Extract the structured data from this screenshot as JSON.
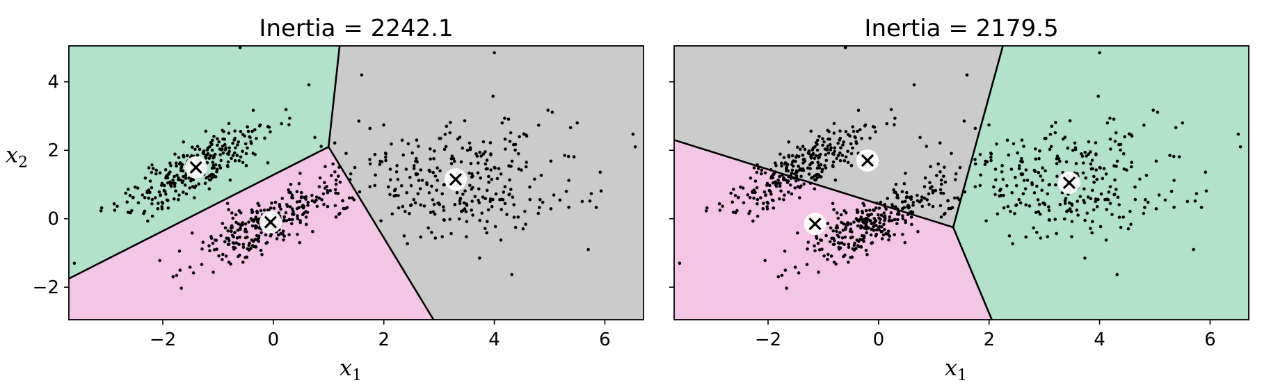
{
  "chart_data": [
    {
      "type": "scatter",
      "title": "Inertia = 2242.1",
      "xlabel": "x",
      "xlabel_sub": "1",
      "ylabel": "x",
      "ylabel_sub": "2",
      "xlim": [
        -3.7,
        6.7
      ],
      "ylim": [
        -2.95,
        5.05
      ],
      "xticks": [
        {
          "v": -2,
          "label": "−2"
        },
        {
          "v": 0,
          "label": "0"
        },
        {
          "v": 2,
          "label": "2"
        },
        {
          "v": 4,
          "label": "4"
        },
        {
          "v": 6,
          "label": "6"
        }
      ],
      "yticks": [
        {
          "v": -2,
          "label": "−2"
        },
        {
          "v": 0,
          "label": "0"
        },
        {
          "v": 2,
          "label": "2"
        },
        {
          "v": 4,
          "label": "4"
        }
      ],
      "grid": false,
      "regions": [
        {
          "color": "#f3c6e5",
          "polygon": [
            [
              -3.7,
              -2.95
            ],
            [
              -3.7,
              -1.75
            ],
            [
              1.0,
              2.1
            ],
            [
              2.9,
              -2.95
            ]
          ]
        },
        {
          "color": "#b2e2cb",
          "polygon": [
            [
              -3.7,
              -1.75
            ],
            [
              -3.7,
              5.05
            ],
            [
              1.2,
              5.05
            ],
            [
              1.0,
              2.1
            ]
          ]
        },
        {
          "color": "#cbcbcb",
          "polygon": [
            [
              1.0,
              2.1
            ],
            [
              1.2,
              5.05
            ],
            [
              6.7,
              5.05
            ],
            [
              6.7,
              -2.95
            ],
            [
              2.9,
              -2.95
            ]
          ]
        }
      ],
      "boundaries": [
        [
          [
            -3.7,
            -1.75
          ],
          [
            1.0,
            2.1
          ]
        ],
        [
          [
            1.0,
            2.1
          ],
          [
            1.2,
            5.05
          ]
        ],
        [
          [
            1.0,
            2.1
          ],
          [
            2.9,
            -2.95
          ]
        ]
      ],
      "centroids": [
        [
          -1.4,
          1.5
        ],
        [
          -0.05,
          -0.1
        ],
        [
          3.3,
          1.15
        ]
      ]
    },
    {
      "type": "scatter",
      "title": "Inertia = 2179.5",
      "xlabel": "x",
      "xlabel_sub": "1",
      "xlim": [
        -3.7,
        6.7
      ],
      "ylim": [
        -2.95,
        5.05
      ],
      "xticks": [
        {
          "v": -2,
          "label": "−2"
        },
        {
          "v": 0,
          "label": "0"
        },
        {
          "v": 2,
          "label": "2"
        },
        {
          "v": 4,
          "label": "4"
        },
        {
          "v": 6,
          "label": "6"
        }
      ],
      "yticks": [
        {
          "v": -2,
          "label": ""
        },
        {
          "v": 0,
          "label": ""
        },
        {
          "v": 2,
          "label": ""
        },
        {
          "v": 4,
          "label": ""
        }
      ],
      "grid": false,
      "regions": [
        {
          "color": "#cbcbcb",
          "polygon": [
            [
              -3.7,
              5.05
            ],
            [
              -3.7,
              2.3
            ],
            [
              1.35,
              -0.25
            ],
            [
              2.25,
              5.05
            ]
          ]
        },
        {
          "color": "#f3c6e5",
          "polygon": [
            [
              -3.7,
              2.3
            ],
            [
              -3.7,
              -2.95
            ],
            [
              2.05,
              -2.95
            ],
            [
              1.35,
              -0.25
            ]
          ]
        },
        {
          "color": "#b2e2cb",
          "polygon": [
            [
              2.25,
              5.05
            ],
            [
              1.35,
              -0.25
            ],
            [
              2.05,
              -2.95
            ],
            [
              6.7,
              -2.95
            ],
            [
              6.7,
              5.05
            ]
          ]
        }
      ],
      "boundaries": [
        [
          [
            -3.7,
            2.3
          ],
          [
            1.35,
            -0.25
          ]
        ],
        [
          [
            1.35,
            -0.25
          ],
          [
            2.25,
            5.05
          ]
        ],
        [
          [
            1.35,
            -0.25
          ],
          [
            2.05,
            -2.95
          ]
        ]
      ],
      "centroids": [
        [
          -0.2,
          1.7
        ],
        [
          -1.15,
          -0.15
        ],
        [
          3.45,
          1.05
        ]
      ]
    }
  ],
  "points": {
    "note_seeded": true,
    "blob_a": {
      "n": 280,
      "center": [
        -1.4,
        1.5
      ],
      "axis": [
        0.72,
        0.69
      ],
      "spread": [
        0.9,
        0.3
      ]
    },
    "blob_b": {
      "n": 300,
      "center": [
        -0.05,
        -0.1
      ],
      "axis": [
        0.72,
        0.69
      ],
      "spread": [
        0.95,
        0.32
      ]
    },
    "blob_c": {
      "n": 300,
      "center": [
        3.3,
        1.15
      ],
      "axis": [
        1,
        0
      ],
      "spread": [
        1.1,
        0.85
      ]
    },
    "outliers": [
      [
        -0.6,
        5.0
      ],
      [
        4.0,
        4.85
      ],
      [
        6.55,
        2.1
      ],
      [
        1.6,
        4.2
      ],
      [
        -3.6,
        -1.3
      ],
      [
        5.7,
        -0.9
      ],
      [
        5.5,
        2.8
      ]
    ]
  }
}
